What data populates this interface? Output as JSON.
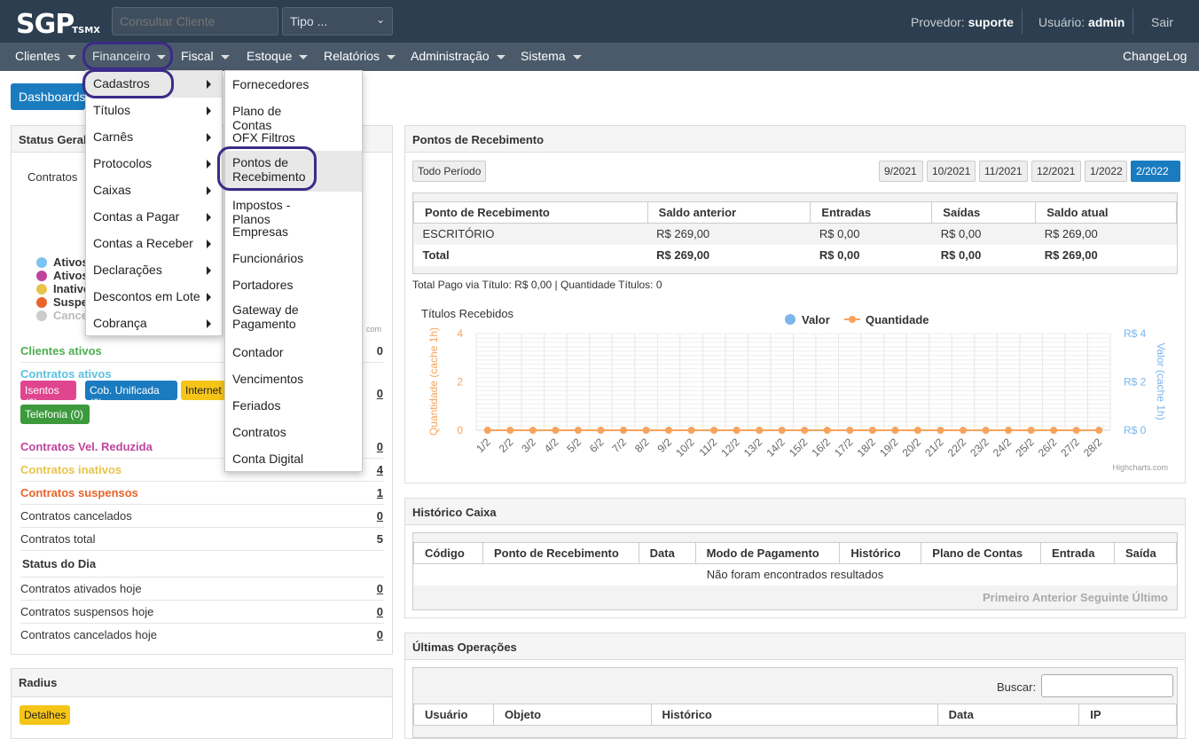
{
  "header": {
    "logo": "SGP",
    "logo_sub": "TSMX",
    "search_placeholder": "Consultar Cliente",
    "type_select": "Tipo ...",
    "provider_label": "Provedor:",
    "provider_value": "suporte",
    "user_label": "Usuário:",
    "user_value": "admin",
    "logout": "Sair"
  },
  "nav": {
    "items": [
      "Clientes",
      "Financeiro",
      "Fiscal",
      "Estoque",
      "Relatórios",
      "Administração",
      "Sistema"
    ],
    "changelog": "ChangeLog"
  },
  "dashboards_button": "Dashboards",
  "financeiro_menu": [
    "Cadastros",
    "Títulos",
    "Carnês",
    "Protocolos",
    "Caixas",
    "Contas a Pagar",
    "Contas a Receber",
    "Declarações",
    "Descontos em Lote",
    "Cobrança"
  ],
  "cadastros_menu": [
    "Fornecedores",
    "Plano de Contas",
    "OFX Filtros",
    "Pontos de Recebimento",
    "Impostos - Planos",
    "Empresas",
    "Funcionários",
    "Portadores",
    "Gateway de Pagamento",
    "Contador",
    "Vencimentos",
    "Feriados",
    "Contratos",
    "Conta Digital"
  ],
  "status_geral": {
    "title": "Status Geral",
    "chart_label": "Contratos",
    "legend": [
      "Ativos",
      "Ativos",
      "Inativo",
      "Suspe",
      "Cance"
    ],
    "legend_colors": [
      "#7cc3f2",
      "#c0449e",
      "#e6c44c",
      "#e8642c",
      "#cccccc"
    ],
    "credit": "com",
    "rows": [
      {
        "label": "Clientes ativos",
        "value": "0",
        "color": "#4caf50"
      },
      {
        "label": "Contratos ativos",
        "value": "0",
        "color": "#5bc0de"
      },
      {
        "label": "Contratos Vel. Reduzida",
        "value": "0",
        "color": "#c0449e"
      },
      {
        "label": "Contratos inativos",
        "value": "4",
        "color": "#e6c44c"
      },
      {
        "label": "Contratos suspensos",
        "value": "1",
        "color": "#e8642c"
      },
      {
        "label": "Contratos cancelados",
        "value": "0",
        "color": "#333"
      },
      {
        "label": "Contratos total",
        "value": "5",
        "color": "#333"
      }
    ],
    "badges": [
      "Isentos (0)",
      "Cob. Unificada (0)",
      "Internet",
      "Telefonia (0)"
    ],
    "status_dia_title": "Status do Dia",
    "dia_rows": [
      {
        "label": "Contratos ativados hoje",
        "value": "0"
      },
      {
        "label": "Contratos suspensos hoje",
        "value": "0"
      },
      {
        "label": "Contratos cancelados hoje",
        "value": "0"
      }
    ]
  },
  "radius": {
    "title": "Radius",
    "button": "Detalhes"
  },
  "pontos": {
    "title": "Pontos de Recebimento",
    "all_period": "Todo Período",
    "periods": [
      "9/2021",
      "10/2021",
      "11/2021",
      "12/2021",
      "1/2022",
      "2/2022"
    ],
    "active_period": "2/2022",
    "columns": [
      "Ponto de Recebimento",
      "Saldo anterior",
      "Entradas",
      "Saídas",
      "Saldo atual"
    ],
    "rows": [
      [
        "ESCRITÓRIO",
        "R$ 269,00",
        "R$ 0,00",
        "R$ 0,00",
        "R$ 269,00"
      ]
    ],
    "total": [
      "Total",
      "R$ 269,00",
      "R$ 0,00",
      "R$ 0,00",
      "R$ 269,00"
    ],
    "summary": "Total Pago via Título: R$ 0,00 | Quantidade Títulos: 0"
  },
  "chart_data": {
    "type": "line",
    "title": "Títulos Recebidos",
    "x": [
      "1/2",
      "2/2",
      "3/2",
      "4/2",
      "5/2",
      "6/2",
      "7/2",
      "8/2",
      "9/2",
      "10/2",
      "11/2",
      "12/2",
      "13/2",
      "14/2",
      "15/2",
      "16/2",
      "17/2",
      "18/2",
      "19/2",
      "20/2",
      "21/2",
      "22/2",
      "23/2",
      "24/2",
      "25/2",
      "26/2",
      "27/2",
      "28/2"
    ],
    "series": [
      {
        "name": "Valor",
        "color": "#7cb5ec",
        "axis": "right",
        "values": [
          0,
          0,
          0,
          0,
          0,
          0,
          0,
          0,
          0,
          0,
          0,
          0,
          0,
          0,
          0,
          0,
          0,
          0,
          0,
          0,
          0,
          0,
          0,
          0,
          0,
          0,
          0,
          0
        ]
      },
      {
        "name": "Quantidade",
        "color": "#f7a35c",
        "axis": "left",
        "values": [
          0,
          0,
          0,
          0,
          0,
          0,
          0,
          0,
          0,
          0,
          0,
          0,
          0,
          0,
          0,
          0,
          0,
          0,
          0,
          0,
          0,
          0,
          0,
          0,
          0,
          0,
          0,
          0
        ]
      }
    ],
    "ylabel_left": "Quantidade (cache 1h)",
    "ylabel_right": "Valor (cache 1h)",
    "yticks_left": [
      "0",
      "2",
      "4"
    ],
    "yticks_right": [
      "R$ 0",
      "R$ 2",
      "R$ 4"
    ],
    "ylim": [
      0,
      4
    ],
    "legend": "top",
    "grid": true,
    "credit": "Highcharts.com"
  },
  "historico": {
    "title": "Histórico Caixa",
    "columns": [
      "Código",
      "Ponto de Recebimento",
      "Data",
      "Modo de Pagamento",
      "Histórico",
      "Plano de Contas",
      "Entrada",
      "Saída"
    ],
    "empty": "Não foram encontrados resultados",
    "pager": "Primeiro Anterior Seguinte Último"
  },
  "ultimas": {
    "title": "Últimas Operações",
    "search_label": "Buscar:",
    "columns": [
      "Usuário",
      "Objeto",
      "Histórico",
      "Data",
      "IP"
    ]
  }
}
